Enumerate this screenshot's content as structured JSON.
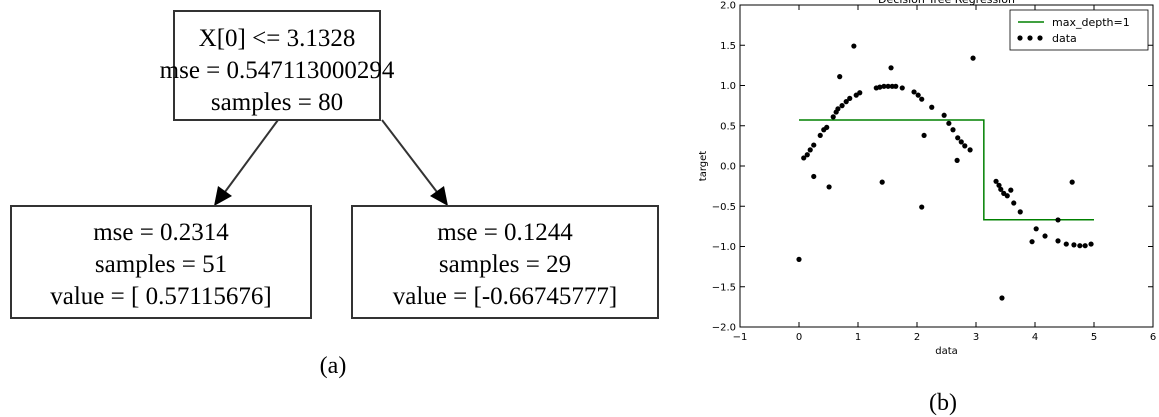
{
  "diagram": {
    "nodes": [
      {
        "lines": [
          "X[0] <= 3.1328",
          "mse = 0.547113000294",
          "samples = 80"
        ]
      },
      {
        "lines": [
          "mse = 0.2314",
          "samples = 51",
          "value = [ 0.57115676]"
        ]
      },
      {
        "lines": [
          "mse = 0.1244",
          "samples = 29",
          "value = [-0.66745777]"
        ]
      }
    ],
    "caption": "(a)"
  },
  "chart_data": {
    "type": "scatter",
    "title": "Decision Tree Regression",
    "xlabel": "data",
    "ylabel": "target",
    "caption": "(b)",
    "xlim": [
      -1,
      6
    ],
    "ylim": [
      -2,
      2
    ],
    "xticks": [
      {
        "value": -1,
        "label": "−1"
      },
      0,
      1,
      2,
      3,
      4,
      5,
      6
    ],
    "yticks": [
      {
        "value": -2,
        "label": "−2.0"
      },
      {
        "value": -1.5,
        "label": "−1.5"
      },
      {
        "value": -1,
        "label": "−1.0"
      },
      {
        "value": -0.5,
        "label": "−0.5"
      },
      {
        "value": 0,
        "label": "0.0"
      },
      0.5,
      {
        "value": 1,
        "label": "1.0"
      },
      1.5,
      {
        "value": 2,
        "label": "2.0"
      }
    ],
    "legend": "upper right",
    "series": [
      {
        "name": "max_depth=1",
        "type": "line",
        "color": "#008000",
        "x": [
          0,
          3.1328,
          3.1328,
          5
        ],
        "values": [
          0.57115676,
          0.57115676,
          -0.66745777,
          -0.66745777
        ]
      },
      {
        "name": "data",
        "type": "scatter",
        "color": "#000000",
        "x": [
          0.0,
          0.08,
          0.14,
          0.19,
          0.25,
          0.25,
          0.36,
          0.42,
          0.47,
          0.51,
          0.58,
          0.63,
          0.66,
          0.69,
          0.73,
          0.8,
          0.86,
          0.93,
          0.97,
          1.03,
          1.31,
          1.37,
          1.41,
          1.44,
          1.51,
          1.56,
          1.58,
          1.64,
          1.75,
          1.95,
          2.02,
          2.08,
          2.08,
          2.12,
          2.25,
          2.46,
          2.54,
          2.61,
          2.68,
          2.69,
          2.75,
          2.81,
          2.9,
          2.95,
          3.34,
          3.39,
          3.42,
          3.44,
          3.47,
          3.53,
          3.59,
          3.64,
          3.75,
          3.95,
          4.02,
          4.17,
          4.39,
          4.39,
          4.53,
          4.63,
          4.66,
          4.76,
          4.85,
          4.95
        ],
        "values": [
          -1.16,
          0.1,
          0.14,
          0.2,
          0.26,
          -0.13,
          0.38,
          0.45,
          0.48,
          -0.26,
          0.61,
          0.67,
          0.71,
          1.11,
          0.75,
          0.8,
          0.84,
          1.49,
          0.88,
          0.91,
          0.97,
          0.98,
          -0.2,
          0.99,
          0.99,
          1.22,
          0.99,
          0.99,
          0.97,
          0.92,
          0.88,
          -0.51,
          0.83,
          0.38,
          0.73,
          0.63,
          0.53,
          0.45,
          0.07,
          0.35,
          0.3,
          0.25,
          0.2,
          1.34,
          -0.19,
          -0.24,
          -0.29,
          -1.64,
          -0.34,
          -0.37,
          -0.3,
          -0.46,
          -0.57,
          -0.94,
          -0.78,
          -0.87,
          -0.67,
          -0.93,
          -0.97,
          -0.2,
          -0.98,
          -0.99,
          -0.99,
          -0.97
        ]
      }
    ]
  }
}
